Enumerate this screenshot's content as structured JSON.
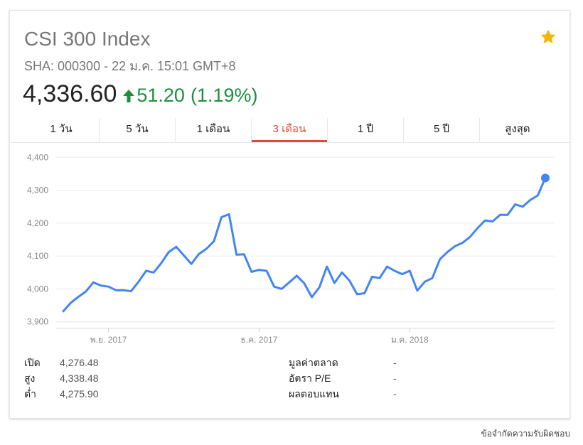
{
  "header": {
    "title": "CSI 300 Index",
    "subtitle": "SHA: 000300 - 22 ม.ค. 15:01 GMT+8",
    "price": "4,336.60",
    "change": "51.20",
    "change_pct": "(1.19%)",
    "change_color": "#1e8e3e"
  },
  "tabs": [
    {
      "label": "1 วัน"
    },
    {
      "label": "5 วัน"
    },
    {
      "label": "1 เดือน"
    },
    {
      "label": "3 เดือน",
      "active": true
    },
    {
      "label": "1 ปี"
    },
    {
      "label": "5 ปี"
    },
    {
      "label": "สูงสุด"
    }
  ],
  "stats_left": [
    {
      "label": "เปิด",
      "value": "4,276.48"
    },
    {
      "label": "สูง",
      "value": "4,338.48"
    },
    {
      "label": "ต่ำ",
      "value": "4,275.90"
    }
  ],
  "stats_right": [
    {
      "label": "มูลค่าตลาด",
      "value": "-"
    },
    {
      "label": "อัตรา P/E",
      "value": "-"
    },
    {
      "label": "ผลตอบแทน",
      "value": "-"
    }
  ],
  "footer": "ข้อจำกัดความรับผิดชอบ",
  "chart_data": {
    "type": "line",
    "ylim": [
      3880,
      4420
    ],
    "yticks": [
      3900,
      4000,
      4100,
      4200,
      4300,
      4400
    ],
    "ytick_labels": [
      "3,900",
      "4,000",
      "4,100",
      "4,200",
      "4,300",
      "4,400"
    ],
    "xlabels": [
      {
        "label": "พ.ย. 2017",
        "index": 6
      },
      {
        "label": "ธ.ค. 2017",
        "index": 26
      },
      {
        "label": "ม.ค. 2018",
        "index": 46
      }
    ],
    "line_color": "#4285f4",
    "grid": true,
    "values": [
      3932,
      3958,
      3976,
      3992,
      4020,
      4010,
      4007,
      3996,
      3996,
      3993,
      4022,
      4055,
      4050,
      4078,
      4112,
      4128,
      4102,
      4076,
      4106,
      4122,
      4145,
      4218,
      4227,
      4104,
      4105,
      4052,
      4058,
      4055,
      4007,
      4000,
      4020,
      4040,
      4017,
      3975,
      4005,
      4068,
      4018,
      4050,
      4025,
      3984,
      3987,
      4037,
      4033,
      4068,
      4055,
      4045,
      4055,
      3995,
      4022,
      4033,
      4090,
      4112,
      4130,
      4140,
      4158,
      4185,
      4208,
      4205,
      4225,
      4225,
      4257,
      4250,
      4270,
      4284,
      4337
    ]
  }
}
